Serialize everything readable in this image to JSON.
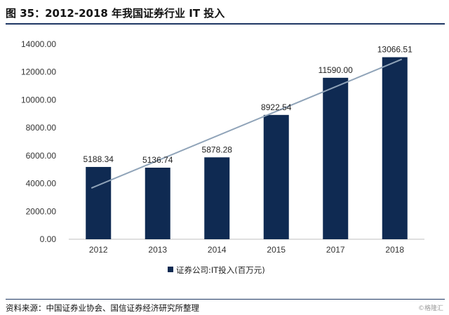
{
  "figure": {
    "title": "图 35：2012-2018 年我国证券行业 IT 投入",
    "source": "资料来源：中国证券业协会、国信证券经济研究所整理",
    "watermark": "©格隆汇"
  },
  "colors": {
    "bar": "#0f2a52",
    "trendline": "#8fa3b8",
    "axis": "#bfbfbf",
    "rule": "#1f3864"
  },
  "chart_data": {
    "type": "bar",
    "categories": [
      "2012",
      "2013",
      "2014",
      "2015",
      "2017",
      "2018"
    ],
    "series": [
      {
        "name": "证券公司:IT投入(百万元)",
        "values": [
          5188.34,
          5136.74,
          5878.28,
          8922.54,
          11590.0,
          13066.51
        ],
        "data_labels": [
          "5188.34",
          "5136.74",
          "5878.28",
          "8922.54",
          "11590.00",
          "13066.51"
        ]
      }
    ],
    "trendline": {
      "type": "linear"
    },
    "ylim": [
      0,
      14000
    ],
    "yticks": [
      0,
      2000,
      4000,
      6000,
      8000,
      10000,
      12000,
      14000
    ],
    "ytick_labels": [
      "0.00",
      "2000.00",
      "4000.00",
      "6000.00",
      "8000.00",
      "10000.00",
      "12000.00",
      "14000.00"
    ],
    "grid": false,
    "legend": "bottom",
    "xlabel": "",
    "ylabel": ""
  }
}
